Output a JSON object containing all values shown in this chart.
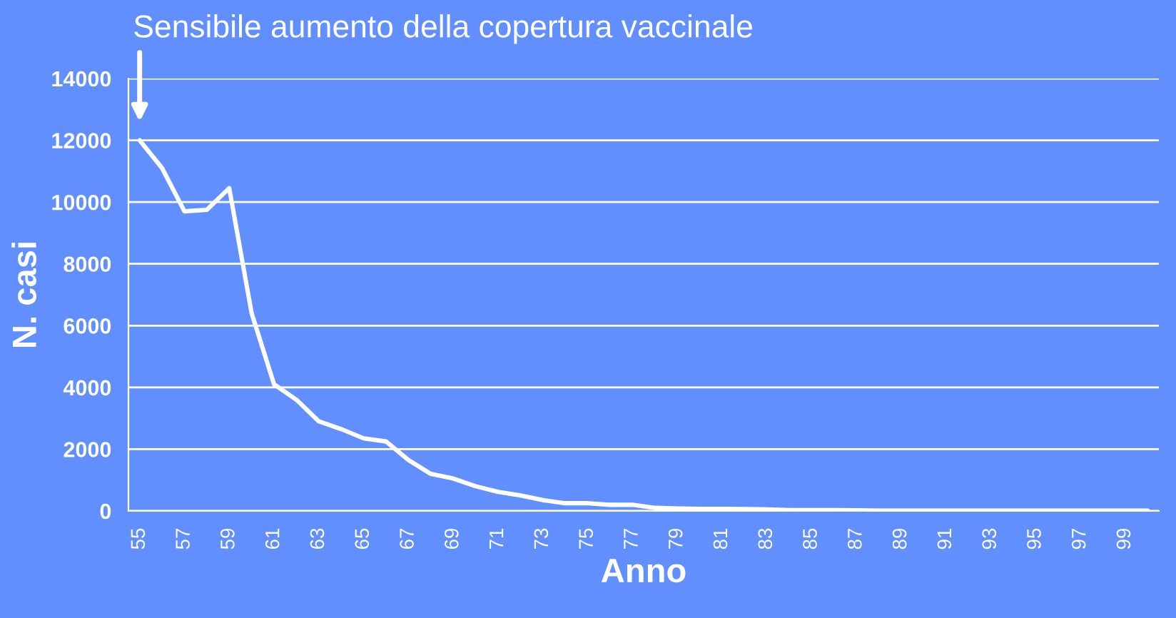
{
  "chart_data": {
    "type": "line",
    "xlabel": "Anno",
    "ylabel": "N. casi",
    "categories": [
      "55",
      null,
      "57",
      null,
      "59",
      null,
      "61",
      null,
      "63",
      null,
      "65",
      null,
      "67",
      null,
      "69",
      null,
      "71",
      null,
      "73",
      null,
      "75",
      null,
      "77",
      null,
      "79",
      null,
      "81",
      null,
      "83",
      null,
      "85",
      null,
      "87",
      null,
      "89",
      null,
      "91",
      null,
      "93",
      null,
      "95",
      null,
      "97",
      null,
      "99",
      null
    ],
    "series": [
      {
        "color": "#ffffff",
        "values": [
          12000,
          11100,
          9700,
          9750,
          10450,
          6400,
          4100,
          3600,
          2900,
          2650,
          2350,
          2250,
          1650,
          1200,
          1050,
          800,
          620,
          500,
          350,
          250,
          250,
          200,
          200,
          100,
          80,
          70,
          70,
          60,
          50,
          30,
          30,
          30,
          20,
          10,
          10,
          10,
          10,
          10,
          10,
          10,
          10,
          10,
          10,
          10,
          10,
          10
        ]
      }
    ],
    "ylim": [
      0,
      14000
    ],
    "yticks": [
      0,
      2000,
      4000,
      6000,
      8000,
      10000,
      12000,
      14000
    ],
    "grid": "y",
    "marker": "none",
    "line_style": "solid",
    "annotations": [
      "Sensibile aumento della copertura vaccinale"
    ]
  }
}
